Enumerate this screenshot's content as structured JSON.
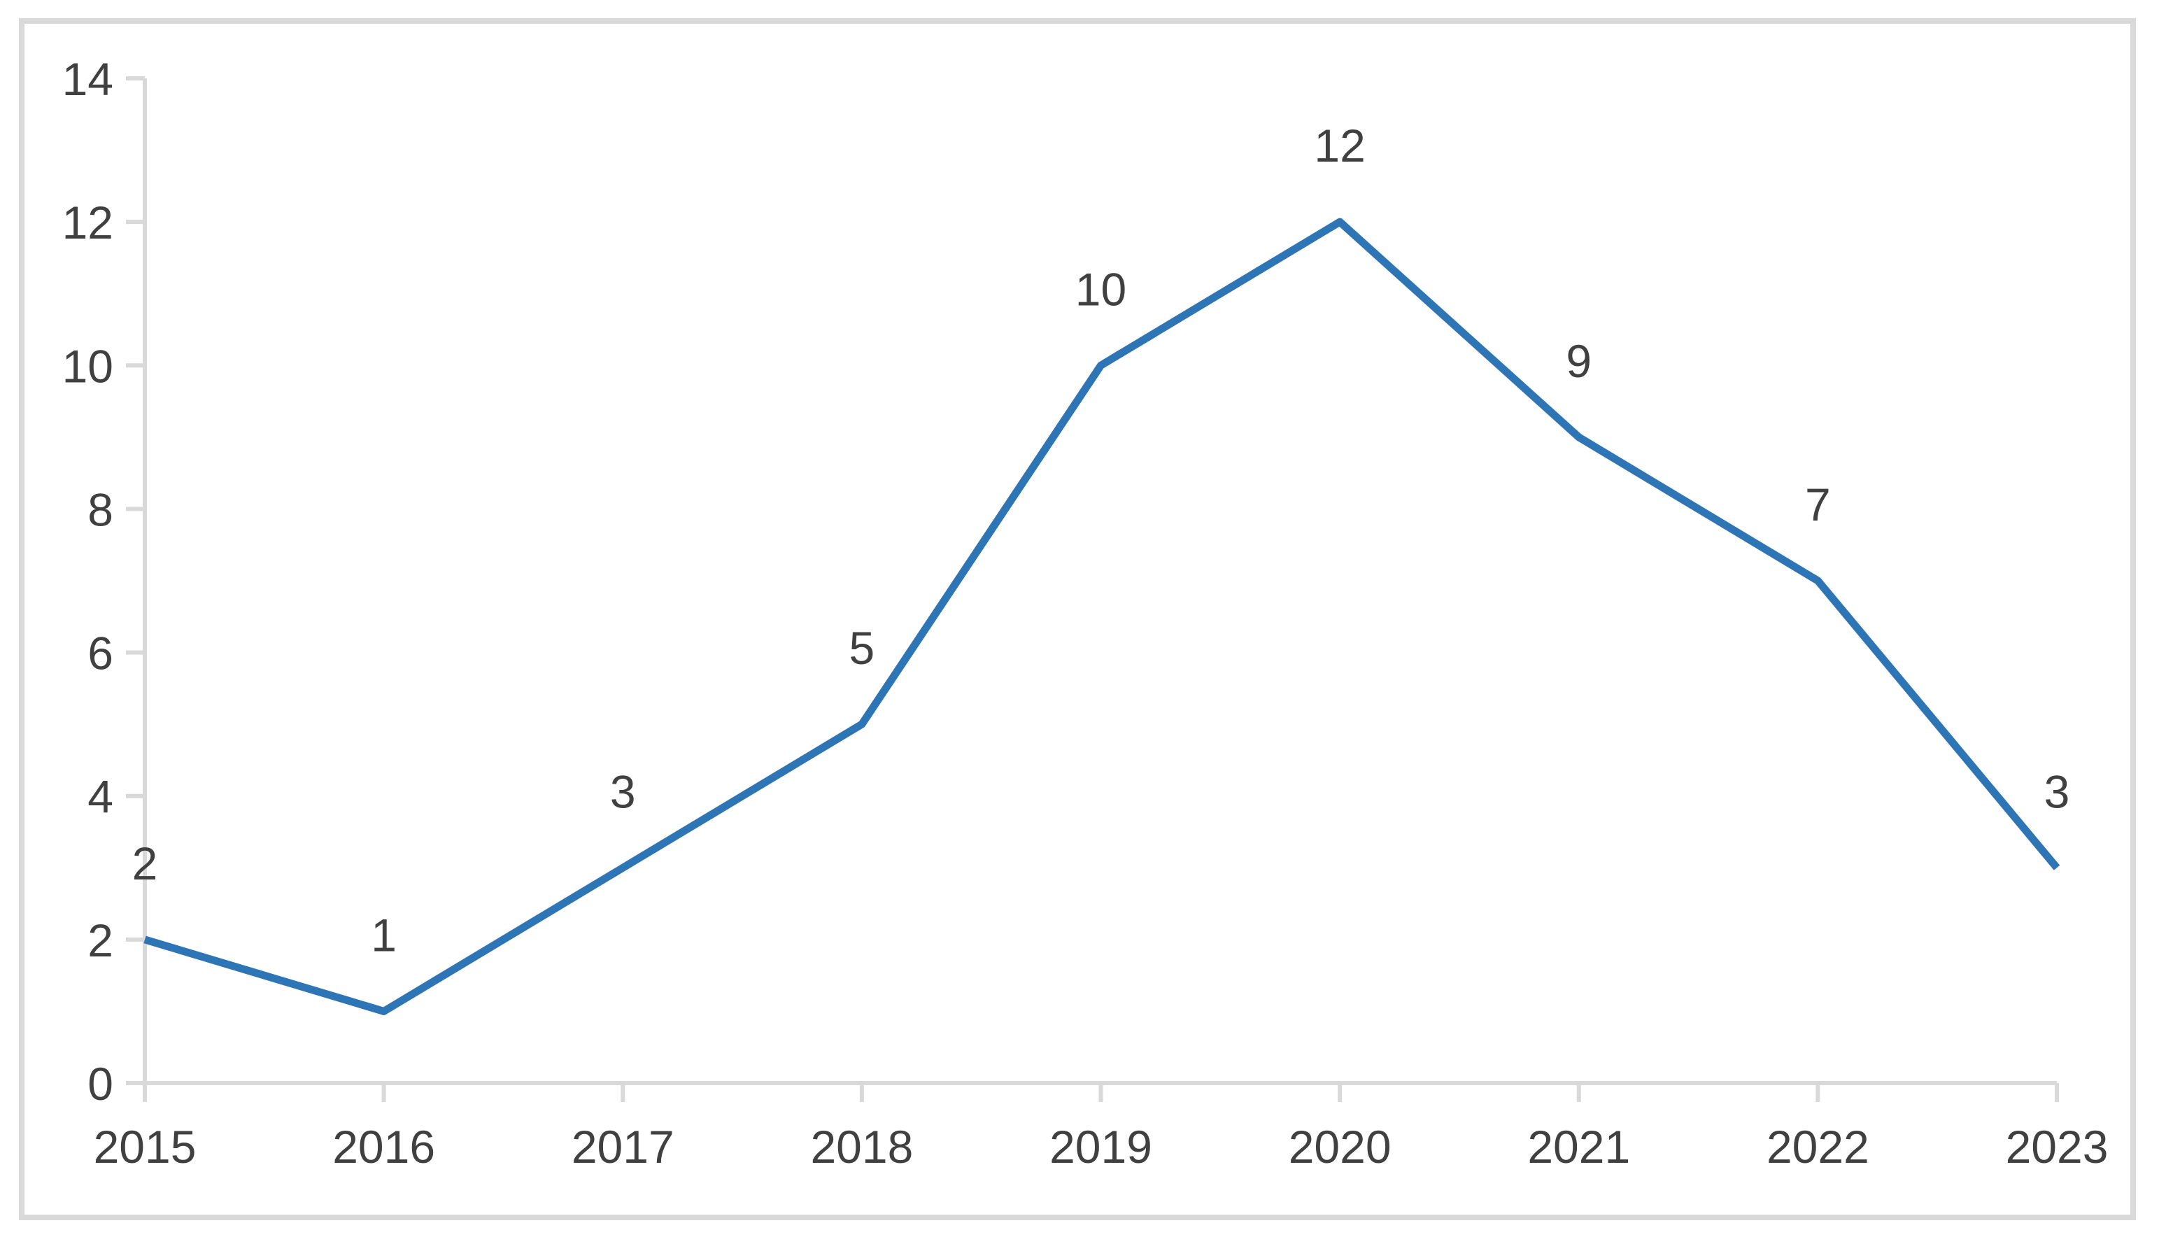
{
  "chart_data": {
    "type": "line",
    "categories": [
      "2015",
      "2016",
      "2017",
      "2018",
      "2019",
      "2020",
      "2021",
      "2022",
      "2023"
    ],
    "values": [
      2,
      1,
      3,
      5,
      10,
      12,
      9,
      7,
      3
    ],
    "series_name": "",
    "title": "",
    "xlabel": "",
    "ylabel": "",
    "ylim": [
      0,
      14
    ],
    "ytick_step": 2,
    "yticks": [
      0,
      2,
      4,
      6,
      8,
      10,
      12,
      14
    ],
    "grid": false,
    "legend_position": "none",
    "data_labels_visible": true,
    "data_labels_position": "above",
    "line_color": "#2e75b6",
    "axis_color": "#d9d9d9",
    "frame_border_color": "#d9d9d9",
    "text_color": "#404040",
    "background_color": "#ffffff"
  }
}
